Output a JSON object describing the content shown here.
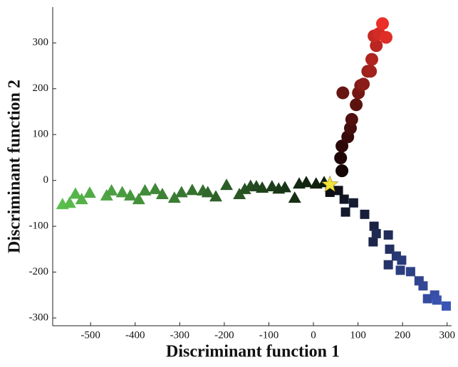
{
  "chart_data": {
    "type": "scatter",
    "xlabel": "Discriminant function 1",
    "ylabel": "Discriminant function 2",
    "xlim": [
      -585,
      310
    ],
    "ylim": [
      -317,
      378
    ],
    "xticks": [
      -500,
      -400,
      -300,
      -200,
      -100,
      0,
      100,
      200,
      300
    ],
    "yticks": [
      -300,
      -200,
      -100,
      0,
      100,
      200,
      300
    ],
    "series": [
      {
        "marker": "triangle",
        "color_range": [
          "#5bbf4e",
          "#0c1a0c"
        ],
        "x": [
          -563,
          -547,
          -534,
          -520,
          -502,
          -464,
          -453,
          -429,
          -411,
          -392,
          -378,
          -355,
          -339,
          -312,
          -296,
          -272,
          -248,
          -237,
          -219,
          -195,
          -166,
          -154,
          -141,
          -128,
          -115,
          -93,
          -78,
          -64,
          -42,
          -32,
          -16,
          6,
          24
        ],
        "y": [
          -52,
          -49,
          -29,
          -41,
          -27,
          -33,
          -22,
          -26,
          -33,
          -41,
          -22,
          -19,
          -30,
          -38,
          -26,
          -21,
          -22,
          -26,
          -35,
          -10,
          -30,
          -19,
          -12,
          -13,
          -16,
          -13,
          -18,
          -15,
          -38,
          -7,
          -4,
          -7,
          -4
        ]
      },
      {
        "marker": "circle",
        "color_range": [
          "#140404",
          "#ea3029"
        ],
        "x": [
          64,
          61,
          64,
          77,
          83,
          86,
          96,
          66,
          101,
          106,
          112,
          122,
          128,
          131,
          141,
          136,
          147,
          163,
          155
        ],
        "y": [
          21,
          49,
          75,
          95,
          114,
          133,
          165,
          191,
          191,
          207,
          210,
          238,
          238,
          264,
          294,
          315,
          320,
          312,
          342
        ]
      },
      {
        "marker": "square",
        "color_range": [
          "#0e0e14",
          "#3a55b5"
        ],
        "x": [
          37,
          56,
          69,
          72,
          90,
          115,
          136,
          134,
          141,
          168,
          171,
          168,
          186,
          198,
          195,
          218,
          237,
          246,
          256,
          272,
          277,
          298
        ],
        "y": [
          -26,
          -22,
          -41,
          -69,
          -49,
          -74,
          -100,
          -134,
          -116,
          -119,
          -150,
          -184,
          -165,
          -174,
          -196,
          -199,
          -219,
          -230,
          -258,
          -250,
          -261,
          -274
        ]
      },
      {
        "marker": "star",
        "color": "#f3e33a",
        "x": [
          37
        ],
        "y": [
          -9
        ]
      }
    ]
  }
}
